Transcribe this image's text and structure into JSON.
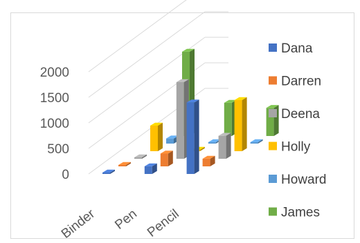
{
  "chart_data": {
    "type": "bar",
    "title_fragment": "",
    "categories": [
      "Binder",
      "Pen",
      "Pencil"
    ],
    "yticks": [
      0,
      500,
      1000,
      1500,
      2000
    ],
    "ylim": [
      0,
      2000
    ],
    "series": [
      {
        "name": "Dana",
        "color": "#4472c4",
        "values": [
          5,
          150,
          1400
        ]
      },
      {
        "name": "Darren",
        "color": "#ed7d31",
        "values": [
          10,
          250,
          150
        ]
      },
      {
        "name": "Deena",
        "color": "#a5a5a5",
        "values": [
          5,
          1500,
          450
        ]
      },
      {
        "name": "Holly",
        "color": "#ffc000",
        "values": [
          500,
          10,
          1000
        ]
      },
      {
        "name": "Howard",
        "color": "#5b9bd5",
        "values": [
          100,
          10,
          10
        ]
      },
      {
        "name": "James",
        "color": "#70ad47",
        "values": [
          1650,
          650,
          550
        ]
      }
    ],
    "legend_position": "right"
  }
}
